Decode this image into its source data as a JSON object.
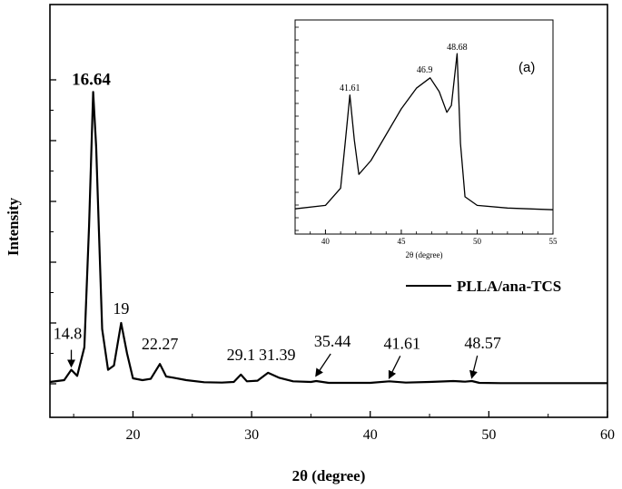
{
  "chart_data": [
    {
      "type": "line",
      "title": "",
      "xlabel": "2θ (degree)",
      "ylabel": "Intensity",
      "xlim": [
        13,
        60
      ],
      "ylim": [
        0,
        100
      ],
      "x_ticks": [
        20,
        30,
        40,
        50,
        60
      ],
      "y_tick_labels_shown": false,
      "grid": false,
      "legend": {
        "position": "right",
        "entries": [
          "PLLA/ana-TCS"
        ]
      },
      "series": [
        {
          "name": "PLLA/ana-TCS",
          "x": [
            13,
            14.2,
            14.8,
            15.3,
            15.9,
            16.3,
            16.64,
            16.9,
            17.4,
            17.9,
            18.4,
            19.0,
            19.5,
            20.0,
            20.8,
            21.5,
            22.27,
            22.8,
            23.4,
            24.5,
            26.0,
            27.5,
            28.5,
            29.1,
            29.6,
            30.5,
            31.39,
            32.3,
            33.5,
            35.0,
            35.44,
            36.5,
            38.0,
            40.0,
            41.61,
            43.0,
            45.0,
            47.0,
            48.0,
            48.57,
            49.2,
            51.0,
            54.0,
            57.0,
            60.0
          ],
          "y": [
            0.6,
            1.2,
            4.6,
            2.6,
            12.0,
            52.0,
            96.0,
            78.0,
            18.0,
            4.6,
            6.0,
            20.0,
            10.0,
            1.8,
            1.2,
            1.6,
            6.5,
            2.4,
            2.0,
            1.2,
            0.5,
            0.4,
            0.6,
            3.0,
            0.8,
            1.0,
            3.6,
            2.0,
            0.8,
            0.6,
            0.9,
            0.3,
            0.3,
            0.3,
            0.8,
            0.4,
            0.6,
            0.9,
            0.7,
            0.9,
            0.3,
            0.2,
            0.2,
            0.2,
            0.2
          ]
        }
      ],
      "annotations": [
        {
          "text": "16.64",
          "x": 16.64,
          "y": 96.0,
          "style": "bold"
        },
        {
          "text": "14.8",
          "x": 14.8,
          "y": 4.6,
          "arrow": true
        },
        {
          "text": "19",
          "x": 19.0,
          "y": 20.0
        },
        {
          "text": "22.27",
          "x": 22.27,
          "y": 6.5
        },
        {
          "text": "29.1",
          "x": 29.1,
          "y": 3.0
        },
        {
          "text": "31.39",
          "x": 31.39,
          "y": 3.6
        },
        {
          "text": "35.44",
          "x": 35.44,
          "y": 0.9,
          "arrow": true
        },
        {
          "text": "41.61",
          "x": 41.61,
          "y": 0.8,
          "arrow": true
        },
        {
          "text": "48.57",
          "x": 48.57,
          "y": 0.9,
          "arrow": true
        }
      ]
    },
    {
      "type": "line",
      "title": "",
      "panel_label": "(a)",
      "xlabel": "2θ (degree)",
      "ylabel": "",
      "xlim": [
        38,
        55
      ],
      "ylim": [
        0,
        100
      ],
      "x_ticks": [
        40,
        45,
        50,
        55
      ],
      "y_tick_labels_shown": false,
      "grid": false,
      "series": [
        {
          "x": [
            38,
            40,
            41.0,
            41.3,
            41.61,
            41.9,
            42.2,
            43.0,
            44.0,
            45.0,
            46.0,
            46.9,
            47.5,
            48.0,
            48.3,
            48.68,
            48.9,
            49.2,
            50.0,
            52.0,
            55.0
          ],
          "y": [
            2,
            4,
            14,
            40,
            68,
            42,
            22,
            30,
            45,
            60,
            72,
            78,
            70,
            58,
            62,
            92,
            40,
            9,
            4,
            2.5,
            1.5
          ]
        }
      ],
      "annotations": [
        {
          "text": "41.61",
          "x": 41.61,
          "y": 68
        },
        {
          "text": "46.9",
          "x": 46.9,
          "y": 78
        },
        {
          "text": "48.68",
          "x": 48.68,
          "y": 92
        }
      ]
    }
  ]
}
